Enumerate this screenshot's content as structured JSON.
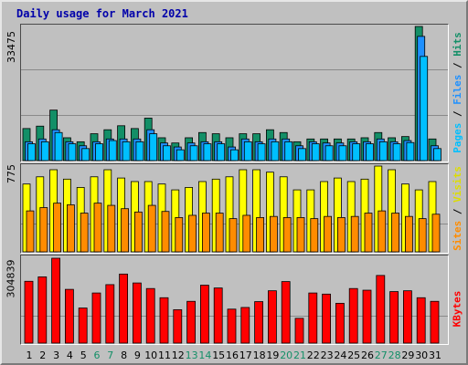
{
  "chart_data": {
    "type": "bar",
    "title": "Daily usage for March 2021",
    "categories": [
      "1",
      "2",
      "3",
      "4",
      "5",
      "6",
      "7",
      "8",
      "9",
      "10",
      "11",
      "12",
      "13",
      "14",
      "15",
      "16",
      "17",
      "18",
      "19",
      "20",
      "21",
      "22",
      "23",
      "24",
      "25",
      "26",
      "27",
      "28",
      "29",
      "30",
      "31"
    ],
    "weekend_days": [
      "6",
      "7",
      "13",
      "14",
      "20",
      "21",
      "27",
      "28"
    ],
    "panels": {
      "hits_files_pages": {
        "ymax_label": "33475",
        "ymax": 33475,
        "label_parts": [
          "Pages",
          "Files",
          "Hits"
        ],
        "series": [
          {
            "name": "Hits",
            "color": "#138f67",
            "values": [
              8000,
              8600,
              12600,
              5700,
              4700,
              6700,
              7700,
              8700,
              8000,
              10600,
              5700,
              4400,
              5700,
              7000,
              6700,
              5700,
              6700,
              6700,
              7700,
              7000,
              4700,
              5400,
              5400,
              5400,
              5400,
              5700,
              7000,
              5700,
              6000,
              33475,
              5400
            ]
          },
          {
            "name": "Files",
            "color": "#1e90ff",
            "values": [
              4700,
              5400,
              7700,
              4700,
              3700,
              4700,
              5400,
              5400,
              5400,
              7700,
              4400,
              3400,
              4400,
              4700,
              4700,
              3400,
              5400,
              4700,
              5400,
              5400,
              3700,
              4700,
              4400,
              4400,
              4700,
              4700,
              5400,
              4700,
              5000,
              31000,
              3700
            ]
          },
          {
            "name": "Pages",
            "color": "#00bfff",
            "values": [
              4200,
              4700,
              7000,
              4200,
              3000,
              4200,
              5000,
              4700,
              4700,
              6700,
              3700,
              2700,
              3700,
              4200,
              4200,
              2700,
              4700,
              4200,
              4700,
              4700,
              3000,
              4200,
              3700,
              3700,
              4200,
              4200,
              4700,
              4200,
              4500,
              26000,
              3000
            ]
          }
        ]
      },
      "sites_visits": {
        "ymax_label": "775",
        "ymax": 775,
        "label_parts": [
          "Sites",
          "Visits"
        ],
        "series": [
          {
            "name": "Visits",
            "color": "#ffff00",
            "values": [
              613,
              678,
              742,
              657,
              582,
              678,
              742,
              667,
              635,
              635,
              613,
              560,
              582,
              635,
              657,
              678,
              742,
              742,
              720,
              678,
              560,
              560,
              635,
              667,
              635,
              657,
              775,
              742,
              613,
              560,
              635
            ]
          },
          {
            "name": "Sites",
            "color": "#ff8c00",
            "values": [
              370,
              400,
              440,
              425,
              350,
              440,
              420,
              390,
              360,
              420,
              365,
              310,
              330,
              350,
              350,
              300,
              330,
              310,
              320,
              310,
              310,
              300,
              320,
              310,
              320,
              350,
              370,
              350,
              320,
              300,
              340
            ]
          }
        ]
      },
      "kbytes": {
        "ymax_label": "304839",
        "ymax": 304839,
        "label_parts": [
          "KBytes"
        ],
        "series": [
          {
            "name": "KBytes",
            "color": "#ff0000",
            "values": [
              222000,
              238000,
              304839,
              193000,
              126000,
              180000,
              210000,
              248000,
              216000,
              196000,
              163000,
              120000,
              150000,
              208000,
              198000,
              122000,
              128000,
              149000,
              188000,
              221000,
              89000,
              180000,
              176000,
              143000,
              196000,
              190000,
              243000,
              185000,
              188000,
              163000,
              150000
            ]
          }
        ]
      }
    },
    "colors": {
      "hits": "#138f67",
      "files": "#1e90ff",
      "pages": "#00bfff",
      "visits": "#ffff00",
      "sites": "#ff8c00",
      "kbytes": "#ff0000",
      "weekday_label": "#000000",
      "weekend_label": "#138f67",
      "title": "#0000aa"
    }
  }
}
